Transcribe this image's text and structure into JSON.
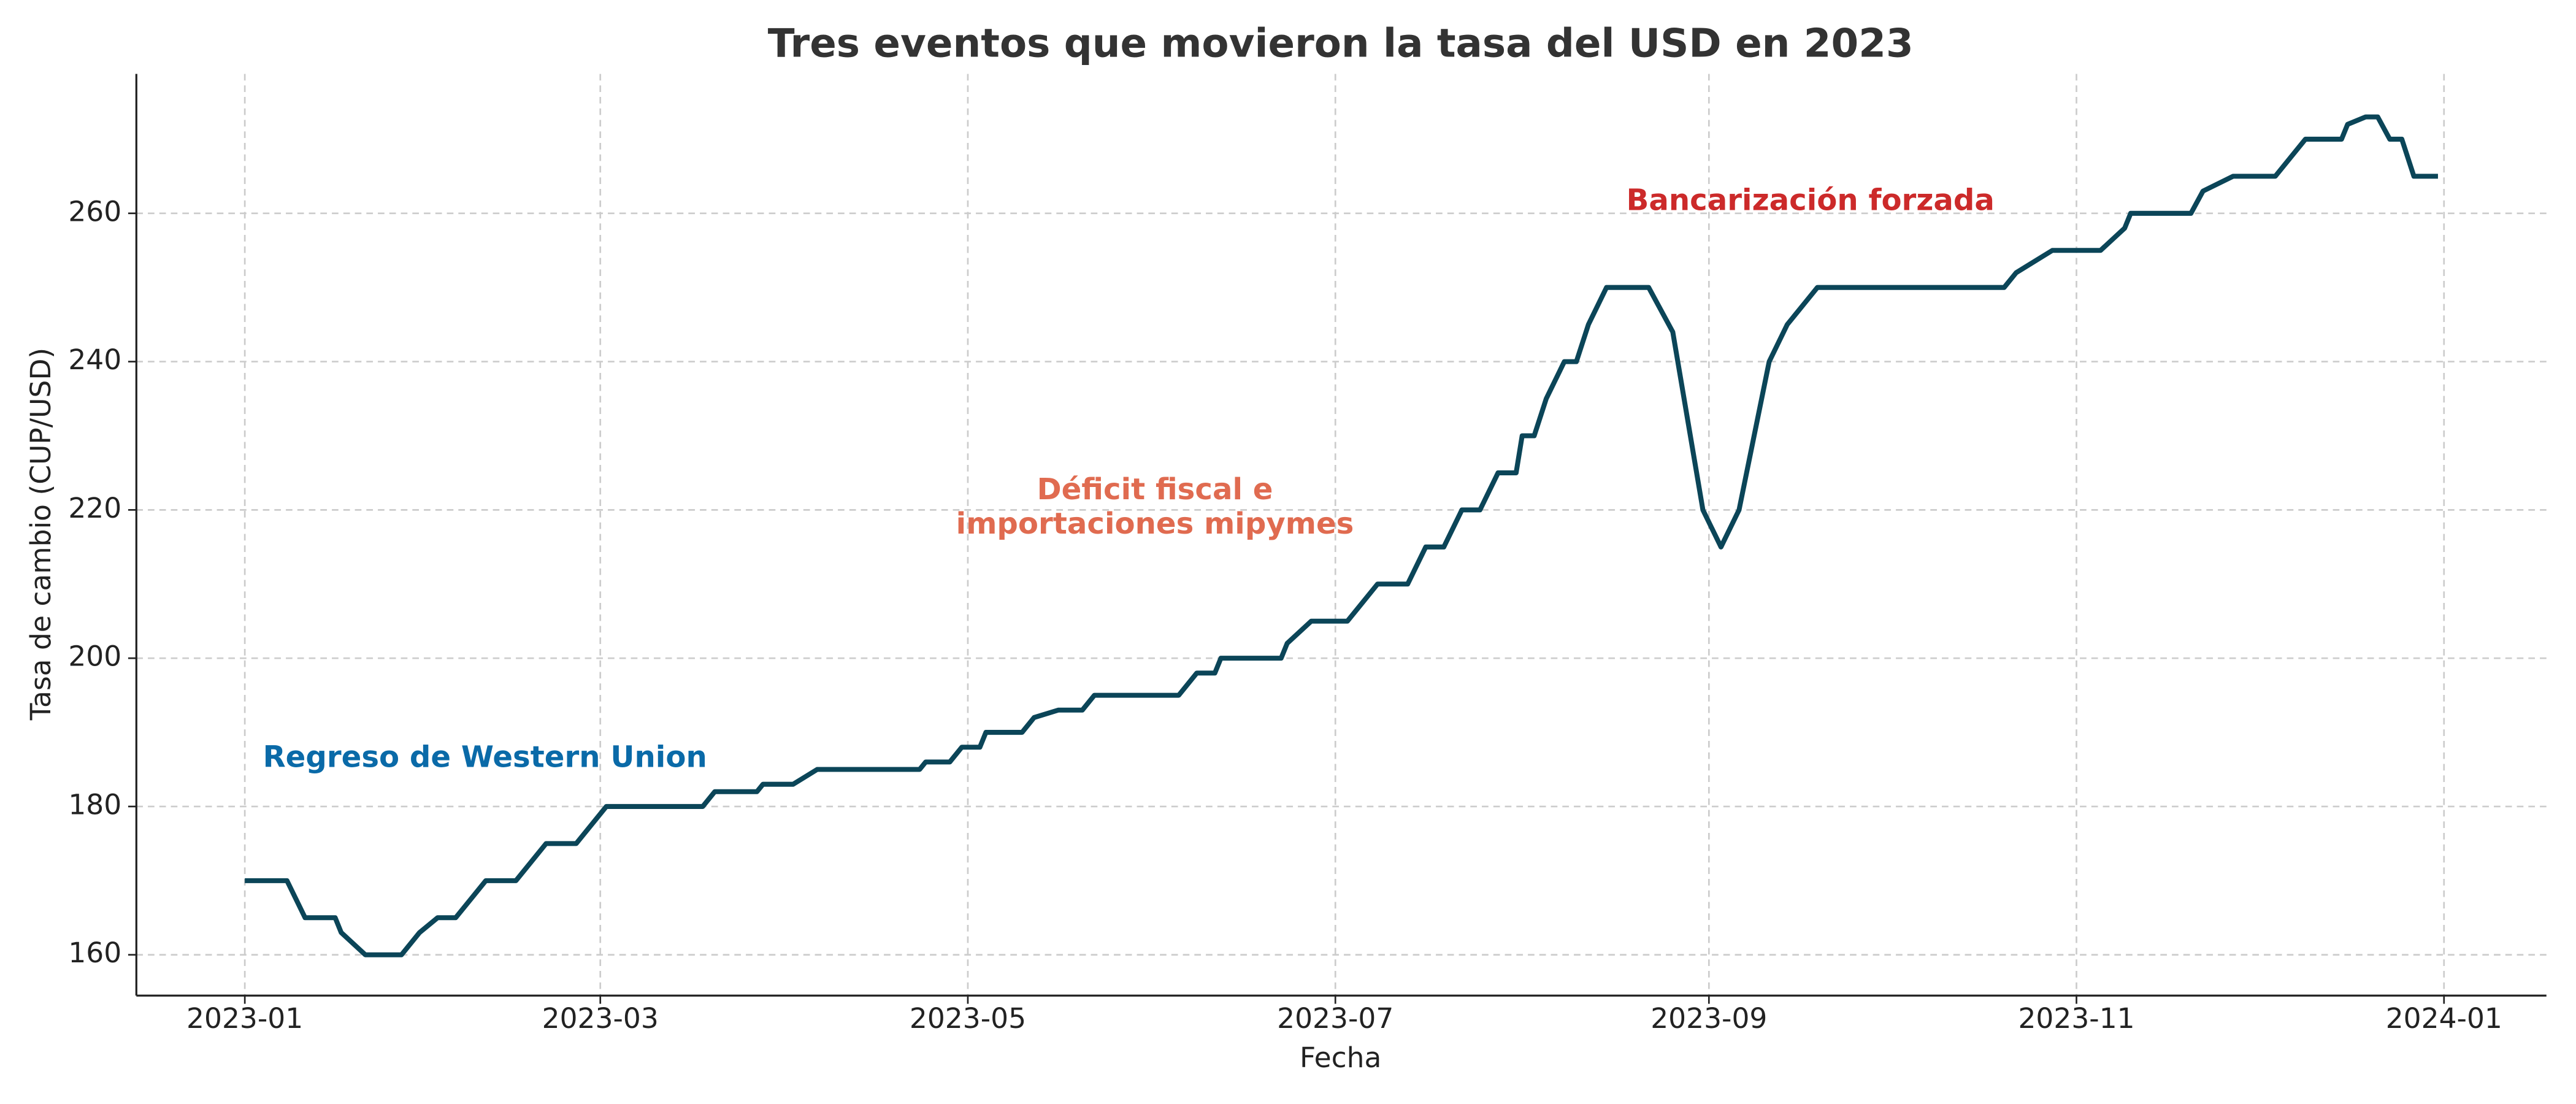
{
  "chart_data": {
    "type": "line",
    "title": "Tres eventos que movieron la tasa del USD en 2023",
    "xlabel": "Fecha",
    "ylabel": "Tasa de cambio (CUP/USD)",
    "x": [
      "2023-01-01",
      "2023-01-08",
      "2023-01-11",
      "2023-01-16",
      "2023-01-17",
      "2023-01-21",
      "2023-01-27",
      "2023-01-30",
      "2023-02-02",
      "2023-02-05",
      "2023-02-10",
      "2023-02-15",
      "2023-02-20",
      "2023-02-25",
      "2023-03-02",
      "2023-03-18",
      "2023-03-20",
      "2023-03-27",
      "2023-03-28",
      "2023-04-02",
      "2023-04-06",
      "2023-04-23",
      "2023-04-24",
      "2023-04-28",
      "2023-04-30",
      "2023-05-03",
      "2023-05-04",
      "2023-05-10",
      "2023-05-12",
      "2023-05-16",
      "2023-05-20",
      "2023-05-22",
      "2023-06-05",
      "2023-06-08",
      "2023-06-11",
      "2023-06-12",
      "2023-06-22",
      "2023-06-23",
      "2023-06-27",
      "2023-07-03",
      "2023-07-05",
      "2023-07-08",
      "2023-07-13",
      "2023-07-16",
      "2023-07-19",
      "2023-07-22",
      "2023-07-25",
      "2023-07-28",
      "2023-07-31",
      "2023-08-01",
      "2023-08-03",
      "2023-08-05",
      "2023-08-08",
      "2023-08-10",
      "2023-08-12",
      "2023-08-15",
      "2023-08-22",
      "2023-08-26",
      "2023-08-31",
      "2023-09-03",
      "2023-09-06",
      "2023-09-11",
      "2023-09-14",
      "2023-09-17",
      "2023-09-19",
      "2023-10-20",
      "2023-10-22",
      "2023-10-28",
      "2023-11-05",
      "2023-11-09",
      "2023-11-10",
      "2023-11-20",
      "2023-11-22",
      "2023-11-27",
      "2023-12-04",
      "2023-12-09",
      "2023-12-15",
      "2023-12-16",
      "2023-12-19",
      "2023-12-21",
      "2023-12-23",
      "2023-12-25",
      "2023-12-27",
      "2023-12-31"
    ],
    "series": [
      {
        "name": "USD",
        "color": "#0b4558",
        "values": [
          170,
          170,
          165,
          165,
          163,
          160,
          160,
          163,
          165,
          165,
          170,
          170,
          175,
          175,
          180,
          180,
          182,
          182,
          183,
          183,
          185,
          185,
          186,
          186,
          188,
          188,
          190,
          190,
          192,
          193,
          193,
          195,
          195,
          198,
          198,
          200,
          200,
          202,
          205,
          205,
          207,
          210,
          210,
          215,
          215,
          220,
          220,
          225,
          225,
          230,
          230,
          235,
          240,
          240,
          245,
          250,
          250,
          244,
          220,
          215,
          220,
          240,
          245,
          248,
          250,
          250,
          252,
          255,
          255,
          258,
          260,
          260,
          263,
          265,
          265,
          270,
          270,
          272,
          273,
          273,
          270,
          270,
          265,
          265
        ]
      }
    ],
    "xlim": [
      "2022-12-14",
      "2024-01-18"
    ],
    "xticks": [
      "2023-01",
      "2023-03",
      "2023-05",
      "2023-07",
      "2023-09",
      "2023-11",
      "2024-01"
    ],
    "ylim": [
      154.5,
      278.8
    ],
    "yticks": [
      160,
      180,
      200,
      220,
      240,
      260
    ],
    "grid": true,
    "annotations": [
      {
        "lines": [
          "Regreso de Western Union"
        ],
        "color": "#0a6aa8"
      },
      {
        "lines": [
          "Déficit fiscal e",
          "importaciones mipymes"
        ],
        "color": "#e06b50"
      },
      {
        "lines": [
          "Bancarización forzada"
        ],
        "color": "#cc2a2a"
      }
    ]
  }
}
